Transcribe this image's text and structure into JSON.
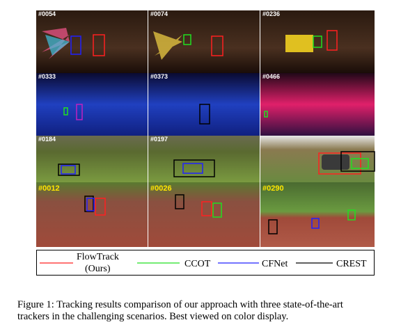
{
  "figure": {
    "frames": [
      [
        "#0054",
        "#0074",
        "#0236"
      ],
      [
        "#0333",
        "#0373",
        "#0466"
      ],
      [
        "#0184",
        "#0197"
      ],
      [
        "#0012",
        "#0026",
        "#0290"
      ]
    ],
    "legend": [
      {
        "label": "FlowTrack",
        "sublabel": "(Ours)"
      },
      {
        "label": "CCOT"
      },
      {
        "label": "CFNet"
      },
      {
        "label": "CREST"
      }
    ],
    "caption": {
      "line1": "Figure 1:  Tracking results comparison of our approach with three state-of-the-art",
      "line2": "trackers in the challenging scenarios. Best viewed on color display."
    }
  }
}
